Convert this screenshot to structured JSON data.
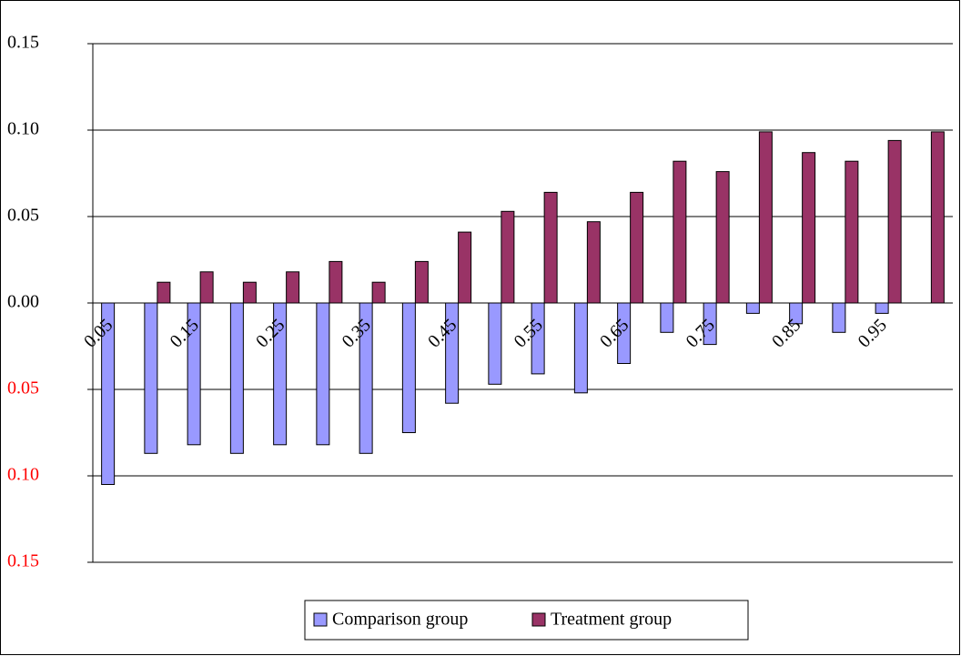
{
  "chart_data": {
    "type": "bar",
    "categories": [
      "0.05",
      null,
      "0.15",
      null,
      "0.25",
      null,
      "0.35",
      null,
      "0.45",
      null,
      "0.55",
      null,
      "0.65",
      null,
      "0.75",
      null,
      "0.85",
      null,
      "0.95",
      null
    ],
    "series": [
      {
        "name": "Comparison group",
        "color": "#9999ff",
        "values": [
          -0.105,
          -0.087,
          -0.082,
          -0.087,
          -0.082,
          -0.082,
          -0.087,
          -0.075,
          -0.058,
          -0.047,
          -0.041,
          -0.052,
          -0.035,
          -0.017,
          -0.024,
          -0.006,
          -0.012,
          -0.017,
          -0.006,
          0
        ]
      },
      {
        "name": "Treatment group",
        "color": "#993366",
        "values": [
          0,
          0.012,
          0.018,
          0.012,
          0.018,
          0.024,
          0.012,
          0.024,
          0.041,
          0.053,
          0.064,
          0.047,
          0.064,
          0.082,
          0.076,
          0.099,
          0.087,
          0.082,
          0.094,
          0.099
        ]
      }
    ],
    "ylim": [
      -0.15,
      0.15
    ],
    "yticks": [
      0.15,
      {
        "value": 0.1,
        "label": "0.10"
      },
      0.05,
      {
        "value": 0,
        "label": "0.00"
      },
      {
        "value": -0.05,
        "label": "0.05"
      },
      {
        "value": -0.1,
        "label": "0.10"
      },
      {
        "value": -0.15,
        "label": "0.15"
      }
    ],
    "negative_tick_color": "#ff0000",
    "grid": true,
    "legend": "bottom"
  }
}
